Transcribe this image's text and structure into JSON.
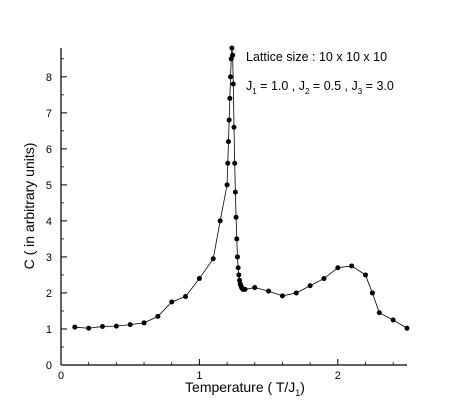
{
  "chart_data": {
    "type": "scatter",
    "title": "",
    "xlabel": "Temperature ( T/J",
    "xlabel_sub": "1",
    "xlabel_close": ")",
    "ylabel": "C ( in arbitrary units)",
    "xlim": [
      0,
      2.5
    ],
    "ylim": [
      0,
      8.8
    ],
    "xticks": [
      0,
      1,
      2
    ],
    "yticks": [
      0,
      1,
      2,
      3,
      4,
      5,
      6,
      7,
      8
    ],
    "grid": false,
    "legend": "none",
    "series_color": "#000000",
    "annotations": {
      "lattice": "Lattice size : 10 x 10 x 10",
      "params": [
        {
          "main": "J",
          "sub": "1",
          "rest": " = 1.0 , "
        },
        {
          "main": "J",
          "sub": "2",
          "rest": " = 0.5  , "
        },
        {
          "main": "J",
          "sub": "3",
          "rest": " = 3.0"
        }
      ]
    },
    "series": [
      {
        "x": [
          0.1,
          0.2,
          0.3,
          0.4,
          0.5,
          0.6,
          0.7,
          0.8,
          0.9,
          1.0,
          1.1,
          1.15,
          1.2,
          1.205,
          1.21,
          1.215,
          1.22,
          1.225,
          1.23,
          1.235,
          1.24,
          1.245,
          1.25,
          1.255,
          1.26,
          1.265,
          1.27,
          1.275,
          1.28,
          1.285,
          1.29,
          1.295,
          1.3,
          1.305,
          1.31,
          1.315,
          1.32,
          1.33,
          1.4,
          1.5,
          1.6,
          1.7,
          1.8,
          1.9,
          2.0,
          2.1,
          2.2,
          2.25,
          2.3,
          2.4,
          2.5
        ],
        "y": [
          1.05,
          1.02,
          1.07,
          1.08,
          1.12,
          1.17,
          1.35,
          1.75,
          1.9,
          2.4,
          2.95,
          4.0,
          5.0,
          5.6,
          6.2,
          6.8,
          7.4,
          8.0,
          8.5,
          8.8,
          8.6,
          7.8,
          6.6,
          5.6,
          4.8,
          4.1,
          3.5,
          3.0,
          2.7,
          2.5,
          2.35,
          2.25,
          2.2,
          2.15,
          2.12,
          2.1,
          2.1,
          2.1,
          2.15,
          2.05,
          1.92,
          2.0,
          2.2,
          2.4,
          2.7,
          2.75,
          2.5,
          2.0,
          1.45,
          1.25,
          1.02
        ]
      }
    ]
  }
}
